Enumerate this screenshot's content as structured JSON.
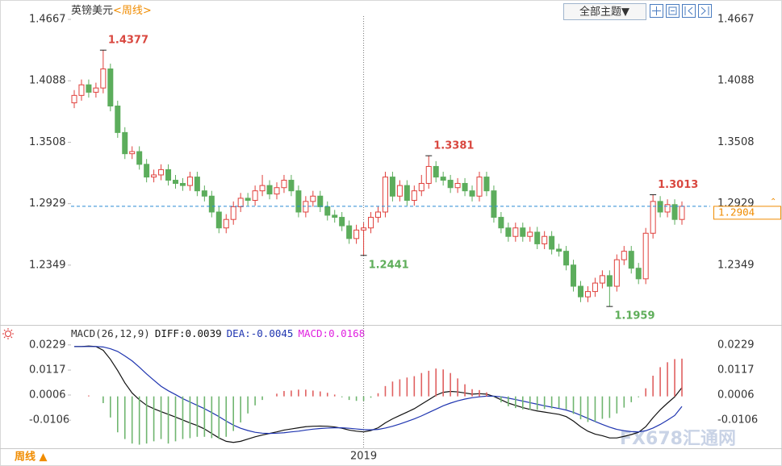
{
  "ui": {
    "theme_button": "全部主题▼",
    "period_button": "周线 ▲",
    "watermark": "FX678汇通网"
  },
  "chart_data": [
    {
      "type": "candlestick",
      "title": "英镑美元",
      "subtitle": "<周线>",
      "categories": [
        null,
        null,
        null,
        null,
        null,
        null,
        null,
        null,
        null,
        null,
        null,
        null,
        null,
        null,
        null,
        null,
        null,
        null,
        null,
        null,
        null,
        null,
        null,
        null,
        null,
        null,
        null,
        null,
        null,
        null,
        null,
        null,
        null,
        null,
        null,
        null,
        null,
        null,
        null,
        null,
        "2019",
        null,
        null,
        null,
        null,
        null,
        null,
        null,
        null,
        null,
        null,
        null,
        null,
        null,
        null,
        null,
        null,
        null,
        null,
        null,
        null,
        null,
        null,
        null,
        null,
        null,
        null,
        null,
        null,
        null,
        null,
        null,
        null,
        null,
        null,
        null,
        null,
        null,
        null,
        null,
        null,
        null,
        null,
        null,
        null
      ],
      "open": [
        1.388,
        1.395,
        1.405,
        1.398,
        1.402,
        1.42,
        1.385,
        1.36,
        1.34,
        1.342,
        1.33,
        1.318,
        1.32,
        1.325,
        1.315,
        1.312,
        1.31,
        1.318,
        1.305,
        1.3,
        1.285,
        1.27,
        1.278,
        1.29,
        1.298,
        1.296,
        1.305,
        1.31,
        1.302,
        1.308,
        1.315,
        1.305,
        1.285,
        1.295,
        1.3,
        1.29,
        1.282,
        1.28,
        1.272,
        1.26,
        1.268,
        1.27,
        1.28,
        1.285,
        1.318,
        1.3,
        1.31,
        1.296,
        1.305,
        1.312,
        1.328,
        1.318,
        1.315,
        1.308,
        1.312,
        1.305,
        1.3,
        1.318,
        1.305,
        1.28,
        1.27,
        1.262,
        1.27,
        1.262,
        1.266,
        1.255,
        1.262,
        1.25,
        1.248,
        1.235,
        1.215,
        1.205,
        1.21,
        1.218,
        1.225,
        1.215,
        1.24,
        1.248,
        1.232,
        1.222,
        1.265,
        1.295,
        1.285,
        1.292,
        1.278
      ],
      "high": [
        1.4,
        1.41,
        1.41,
        1.407,
        1.4377,
        1.425,
        1.39,
        1.365,
        1.347,
        1.347,
        1.335,
        1.325,
        1.33,
        1.33,
        1.32,
        1.317,
        1.323,
        1.323,
        1.31,
        1.305,
        1.29,
        1.283,
        1.295,
        1.303,
        1.303,
        1.31,
        1.32,
        1.315,
        1.313,
        1.32,
        1.32,
        1.31,
        1.3,
        1.305,
        1.305,
        1.295,
        1.287,
        1.285,
        1.277,
        1.273,
        1.275,
        1.285,
        1.29,
        1.323,
        1.323,
        1.315,
        1.315,
        1.31,
        1.32,
        1.3381,
        1.333,
        1.323,
        1.32,
        1.317,
        1.317,
        1.31,
        1.323,
        1.323,
        1.31,
        1.285,
        1.275,
        1.275,
        1.275,
        1.271,
        1.271,
        1.267,
        1.267,
        1.255,
        1.253,
        1.24,
        1.22,
        1.215,
        1.223,
        1.23,
        1.23,
        1.245,
        1.253,
        1.253,
        1.237,
        1.27,
        1.3013,
        1.3,
        1.297,
        1.297,
        1.295
      ],
      "low": [
        1.383,
        1.39,
        1.393,
        1.393,
        1.397,
        1.38,
        1.355,
        1.335,
        1.335,
        1.325,
        1.313,
        1.313,
        1.315,
        1.31,
        1.307,
        1.305,
        1.305,
        1.3,
        1.295,
        1.28,
        1.265,
        1.265,
        1.273,
        1.285,
        1.291,
        1.291,
        1.3,
        1.297,
        1.297,
        1.303,
        1.3,
        1.28,
        1.28,
        1.29,
        1.285,
        1.277,
        1.275,
        1.267,
        1.255,
        1.255,
        1.2441,
        1.265,
        1.275,
        1.28,
        1.295,
        1.295,
        1.291,
        1.291,
        1.3,
        1.307,
        1.313,
        1.31,
        1.303,
        1.303,
        1.3,
        1.295,
        1.295,
        1.3,
        1.275,
        1.265,
        1.257,
        1.257,
        1.257,
        1.257,
        1.25,
        1.25,
        1.245,
        1.243,
        1.23,
        1.21,
        1.2,
        1.2,
        1.205,
        1.213,
        1.1959,
        1.21,
        1.235,
        1.227,
        1.217,
        1.217,
        1.26,
        1.28,
        1.28,
        1.273,
        1.273
      ],
      "close": [
        1.395,
        1.405,
        1.398,
        1.402,
        1.42,
        1.385,
        1.36,
        1.34,
        1.342,
        1.33,
        1.318,
        1.32,
        1.325,
        1.315,
        1.312,
        1.31,
        1.318,
        1.305,
        1.3,
        1.285,
        1.27,
        1.278,
        1.29,
        1.298,
        1.296,
        1.305,
        1.31,
        1.302,
        1.308,
        1.315,
        1.305,
        1.285,
        1.295,
        1.3,
        1.29,
        1.282,
        1.28,
        1.272,
        1.26,
        1.268,
        1.27,
        1.28,
        1.285,
        1.318,
        1.3,
        1.31,
        1.296,
        1.305,
        1.312,
        1.328,
        1.318,
        1.315,
        1.308,
        1.312,
        1.305,
        1.3,
        1.318,
        1.305,
        1.28,
        1.27,
        1.262,
        1.27,
        1.262,
        1.266,
        1.255,
        1.262,
        1.25,
        1.248,
        1.235,
        1.215,
        1.205,
        1.21,
        1.218,
        1.225,
        1.215,
        1.24,
        1.248,
        1.232,
        1.222,
        1.265,
        1.295,
        1.285,
        1.292,
        1.278,
        1.2904
      ],
      "up_color": "#e0403c",
      "down_color": "#5cad5c",
      "high_label_color": "#d9473f",
      "low_label_color": "#5fae5a",
      "marked_highs": [
        4,
        49,
        80
      ],
      "marked_lows": [
        40,
        74
      ],
      "last_line_color": "#2a8ad4",
      "last_label_color": "#f08c00",
      "ylim": [
        1.1808,
        1.485
      ],
      "yticks": [
        1.2349,
        1.2929,
        1.3508,
        1.4088,
        1.4667
      ]
    },
    {
      "type": "macd",
      "label": "MACD(26,12,9)",
      "series": [
        {
          "name": "DIFF:",
          "color": "#111111",
          "values": [
            0.0222,
            0.0222,
            0.0224,
            0.0222,
            0.0205,
            0.0165,
            0.0115,
            0.006,
            0.0015,
            -0.0015,
            -0.004,
            -0.0055,
            -0.0068,
            -0.008,
            -0.0092,
            -0.0105,
            -0.0118,
            -0.013,
            -0.0145,
            -0.0165,
            -0.0185,
            -0.02,
            -0.0205,
            -0.02,
            -0.019,
            -0.018,
            -0.0172,
            -0.0165,
            -0.0158,
            -0.015,
            -0.0145,
            -0.014,
            -0.0135,
            -0.0133,
            -0.0132,
            -0.0133,
            -0.0136,
            -0.0142,
            -0.015,
            -0.0155,
            -0.0158,
            -0.0152,
            -0.014,
            -0.0118,
            -0.01,
            -0.0085,
            -0.007,
            -0.0055,
            -0.0035,
            -0.0015,
            0.0005,
            0.0018,
            0.0022,
            0.002,
            0.0015,
            0.001,
            0.0012,
            0.001,
            0.0,
            -0.0015,
            -0.003,
            -0.004,
            -0.005,
            -0.0058,
            -0.0065,
            -0.007,
            -0.0075,
            -0.008,
            -0.009,
            -0.011,
            -0.0135,
            -0.0155,
            -0.0168,
            -0.0175,
            -0.0185,
            -0.0185,
            -0.0178,
            -0.017,
            -0.016,
            -0.0135,
            -0.0095,
            -0.006,
            -0.003,
            -0.0002,
            0.0039
          ]
        },
        {
          "name": "DEA:",
          "color": "#1f35b0",
          "values": [
            0.0222,
            0.0222,
            0.0222,
            0.0222,
            0.022,
            0.0212,
            0.02,
            0.018,
            0.0158,
            0.013,
            0.01,
            0.0072,
            0.0045,
            0.0025,
            0.0008,
            -0.001,
            -0.0025,
            -0.004,
            -0.0055,
            -0.0072,
            -0.009,
            -0.011,
            -0.0128,
            -0.0142,
            -0.0152,
            -0.016,
            -0.0164,
            -0.0165,
            -0.0164,
            -0.0162,
            -0.0158,
            -0.0155,
            -0.015,
            -0.0146,
            -0.0143,
            -0.0141,
            -0.014,
            -0.014,
            -0.0142,
            -0.0145,
            -0.0148,
            -0.0149,
            -0.0147,
            -0.0141,
            -0.0133,
            -0.0123,
            -0.0112,
            -0.01,
            -0.0087,
            -0.0072,
            -0.0057,
            -0.0042,
            -0.003,
            -0.002,
            -0.0012,
            -0.0006,
            -0.0002,
            0.0001,
            0.0001,
            -0.0002,
            -0.0008,
            -0.0014,
            -0.0021,
            -0.0028,
            -0.0035,
            -0.0042,
            -0.0048,
            -0.0054,
            -0.0061,
            -0.0071,
            -0.0084,
            -0.0098,
            -0.0112,
            -0.0125,
            -0.0137,
            -0.0147,
            -0.0153,
            -0.0157,
            -0.0158,
            -0.0153,
            -0.0141,
            -0.0125,
            -0.0106,
            -0.0085,
            -0.0045
          ]
        },
        {
          "name": "MACD:",
          "color": "#e020e0",
          "up_color": "#e06060",
          "down_color": "#6fb56f",
          "values": [
            0.0,
            0.0,
            0.0004,
            0.0,
            -0.003,
            -0.0094,
            -0.016,
            -0.019,
            -0.021,
            -0.0215,
            -0.021,
            -0.02,
            -0.019,
            -0.021,
            -0.02,
            -0.019,
            -0.0186,
            -0.018,
            -0.018,
            -0.0186,
            -0.019,
            -0.018,
            -0.0154,
            -0.0116,
            -0.0076,
            -0.004,
            -0.0016,
            0.0,
            0.0012,
            0.0024,
            0.0026,
            0.003,
            0.003,
            0.0026,
            0.0022,
            0.0016,
            0.0008,
            -0.0004,
            -0.0016,
            -0.002,
            -0.002,
            -0.0006,
            0.0014,
            0.0046,
            0.0066,
            0.0076,
            0.0084,
            0.009,
            0.0104,
            0.0114,
            0.0124,
            0.012,
            0.0104,
            0.008,
            0.0054,
            0.0032,
            0.0028,
            0.0018,
            -0.0002,
            -0.0026,
            -0.0044,
            -0.0052,
            -0.0058,
            -0.006,
            -0.006,
            -0.0056,
            -0.0054,
            -0.0052,
            -0.0058,
            -0.0078,
            -0.0102,
            -0.0114,
            -0.0112,
            -0.01,
            -0.0096,
            -0.0076,
            -0.005,
            -0.0026,
            -0.0004,
            0.0036,
            0.0092,
            0.013,
            0.0152,
            0.0166,
            0.0168
          ]
        }
      ],
      "ylim": [
        -0.0231,
        0.0311
      ],
      "yticks": [
        -0.0106,
        0.0006,
        0.0117,
        0.0229
      ]
    }
  ]
}
